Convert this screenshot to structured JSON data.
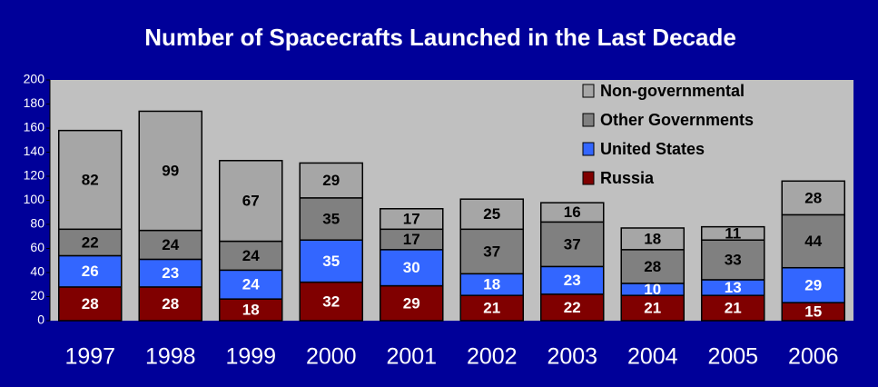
{
  "chart_data": {
    "type": "stacked_bar",
    "title": "Number of Spacecrafts Launched in the Last Decade",
    "categories": [
      "1997",
      "1998",
      "1999",
      "2000",
      "2001",
      "2002",
      "2003",
      "2004",
      "2005",
      "2006"
    ],
    "series": [
      {
        "name": "Russia",
        "color": "#800000",
        "label_color": "#ffffff",
        "values": [
          28,
          28,
          18,
          32,
          29,
          21,
          22,
          21,
          21,
          15
        ]
      },
      {
        "name": "United States",
        "color": "#3366ff",
        "label_color": "#ffffff",
        "values": [
          26,
          23,
          24,
          35,
          30,
          18,
          23,
          10,
          13,
          29
        ]
      },
      {
        "name": "Other Governments",
        "color": "#808080",
        "label_color": "#000000",
        "values": [
          22,
          24,
          24,
          35,
          17,
          37,
          37,
          28,
          33,
          44
        ]
      },
      {
        "name": "Non-governmental",
        "color": "#a6a6a6",
        "label_color": "#000000",
        "values": [
          82,
          99,
          67,
          29,
          17,
          25,
          16,
          18,
          11,
          28
        ]
      }
    ],
    "ylim": [
      0,
      200
    ],
    "yticks": [
      0,
      20,
      40,
      60,
      80,
      100,
      120,
      140,
      160,
      180,
      200
    ],
    "legend": "top-right"
  }
}
